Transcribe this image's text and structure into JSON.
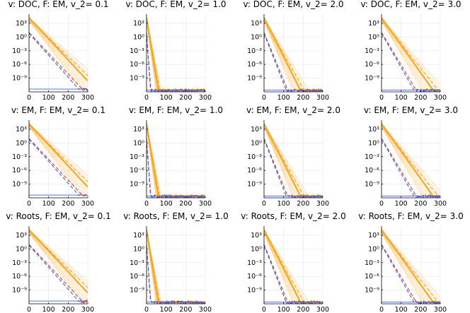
{
  "chart_data": {
    "type": "line",
    "yscale": "log10",
    "xlim": [
      0,
      300
    ],
    "ylim": [
      1e-12,
      100000.0
    ],
    "x_ticks": [
      0,
      100,
      200,
      300
    ],
    "x_tick_labels": [
      "0",
      "100",
      "200",
      "300"
    ],
    "y_ticks": [
      1000,
      1,
      0.001,
      1e-06,
      1e-09
    ],
    "y_tick_labels": [
      "10³",
      "10⁰",
      "10⁻³",
      "10⁻⁶",
      "10⁻⁹"
    ],
    "colors": {
      "orange": "#f5a623",
      "blue": "#3f5fd4",
      "red": "#d43a2f"
    },
    "panels": [
      {
        "title": "v: DOC, F: EM, v_2= 0.1",
        "row": 0,
        "col": 0,
        "orange_slope": -0.046,
        "orange_floor": -11.5,
        "blue_slope": -0.048,
        "blue_floor": -11.5
      },
      {
        "title": "v: DOC, F: EM, v_2= 1.0",
        "row": 0,
        "col": 1,
        "orange_slope": -0.26,
        "orange_floor": -11.7,
        "blue_slope": -0.6,
        "blue_floor": -11.7
      },
      {
        "title": "v: DOC, F: EM, v_2= 2.0",
        "row": 0,
        "col": 2,
        "orange_slope": -0.085,
        "orange_floor": -11.7,
        "blue_slope": -0.11,
        "blue_floor": -11.7
      },
      {
        "title": "v: DOC, F: EM, v_2= 3.0",
        "row": 0,
        "col": 3,
        "orange_slope": -0.06,
        "orange_floor": -11.7,
        "blue_slope": -0.075,
        "blue_floor": -11.7
      },
      {
        "title": "v: EM, F: EM, v_2= 0.1",
        "row": 1,
        "col": 0,
        "orange_slope": -0.046,
        "orange_floor": -11.5,
        "blue_slope": -0.048,
        "blue_floor": -11.5
      },
      {
        "title": "v: EM, F: EM, v_2= 1.0",
        "row": 1,
        "col": 1,
        "orange_slope": -0.26,
        "orange_floor": -11.7,
        "blue_slope": -0.6,
        "blue_floor": -11.7
      },
      {
        "title": "v: EM, F: EM, v_2= 2.0",
        "row": 1,
        "col": 2,
        "orange_slope": -0.085,
        "orange_floor": -11.7,
        "blue_slope": -0.11,
        "blue_floor": -11.7
      },
      {
        "title": "v: EM, F: EM, v_2= 3.0",
        "row": 1,
        "col": 3,
        "orange_slope": -0.06,
        "orange_floor": -11.7,
        "blue_slope": -0.075,
        "blue_floor": -11.7
      },
      {
        "title": "v: Roots, F: EM, v_2= 0.1",
        "row": 2,
        "col": 0,
        "orange_slope": -0.046,
        "orange_floor": -11.5,
        "blue_slope": -0.048,
        "blue_floor": -11.5
      },
      {
        "title": "v: Roots, F: EM, v_2= 1.0",
        "row": 2,
        "col": 1,
        "orange_slope": -0.26,
        "orange_floor": -11.7,
        "blue_slope": -0.6,
        "blue_floor": -11.7
      },
      {
        "title": "v: Roots, F: EM, v_2= 2.0",
        "row": 2,
        "col": 2,
        "orange_slope": -0.085,
        "orange_floor": -11.7,
        "blue_slope": -0.11,
        "blue_floor": -11.7
      },
      {
        "title": "v: Roots, F: EM, v_2= 3.0",
        "row": 2,
        "col": 3,
        "orange_slope": -0.06,
        "orange_floor": -11.7,
        "blue_slope": -0.075,
        "blue_floor": -11.7
      }
    ]
  }
}
